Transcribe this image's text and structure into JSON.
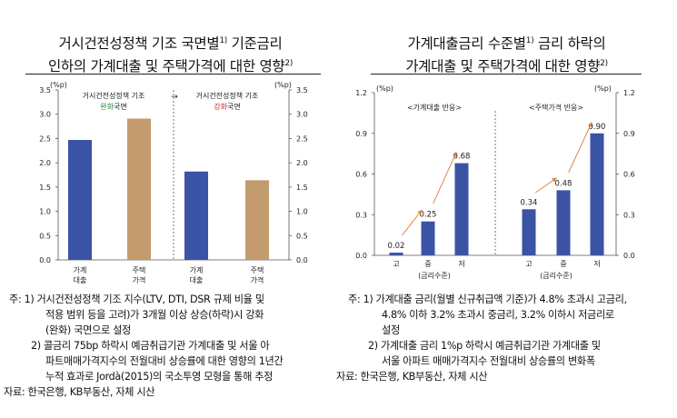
{
  "left": {
    "title_line1": "거시건전성정책 기조 국면별",
    "title_sup1": "1)",
    "title_line1b": " 기준금리",
    "title_line2": "인하의 가계대출 및 주택가격에 대한 영향",
    "title_sup2": "2)",
    "unit_left": "(%p)",
    "unit_right": "(%p)",
    "phase1_label": "거시건전성정책 기조",
    "phase1_sub_colored": "완화",
    "phase1_sub_rest": "국면",
    "phase2_label": "거시건전성정책 기조",
    "phase2_sub_colored": "강화",
    "phase2_sub_rest": "국면",
    "arrow": "→"
  },
  "right": {
    "title_line1": "가계대출금리 수준별",
    "title_sup1": "1)",
    "title_line1b": " 금리 하락의",
    "title_line2": "가계대출 및 주택가격에 대한 영향",
    "title_sup2": "2)",
    "unit_left": "(%p)",
    "unit_right": "(%p)",
    "group1_label": "<가계대출 반응>",
    "group2_label": "<주택가격 반응>",
    "xgroup_label": "(금리수준)"
  },
  "colors": {
    "blue": "#3A53A4",
    "tan": "#C39B6C",
    "orange": "#E0854B",
    "green": "#2E8B3A",
    "red": "#D42A2A"
  },
  "chart_data": [
    {
      "type": "bar",
      "categories": [
        "가계\n대출",
        "주택\n가격",
        "가계\n대출",
        "주택\n가격"
      ],
      "values": [
        2.47,
        2.91,
        1.82,
        1.64
      ],
      "bar_colors": [
        "#3A53A4",
        "#C39B6C",
        "#3A53A4",
        "#C39B6C"
      ],
      "ylim": [
        0,
        3.5
      ],
      "yticks": [
        "0.0",
        "0.5",
        "1.0",
        "1.5",
        "2.0",
        "2.5",
        "3.0",
        "3.5"
      ],
      "title": "거시건전성정책 기조 국면별 기준금리 인하의 가계대출 및 주택가격에 대한 영향"
    },
    {
      "type": "bar",
      "categories": [
        "고",
        "중",
        "저",
        "고",
        "중",
        "저"
      ],
      "values": [
        0.02,
        0.25,
        0.68,
        0.34,
        0.48,
        0.9
      ],
      "value_labels": [
        "0.02",
        "0.25",
        "0.68",
        "0.34",
        "0.48",
        "0.90"
      ],
      "ylim": [
        0,
        1.2
      ],
      "yticks": [
        "0.0",
        "0.3",
        "0.6",
        "0.9",
        "1.2"
      ],
      "title": "가계대출금리 수준별 금리 하락의 가계대출 및 주택가격에 대한 영향"
    }
  ],
  "notes_left": {
    "l1": "주: 1) 거시건전성정책 기조 지수(LTV, DTI, DSR 규제 비율 및",
    "l2": "적용 범위 등을 고려)가 3개월 이상 상승(하락)시 강화",
    "l3": "(완화) 국면으로 설정",
    "l4": "2) 콜금리 75bp 하락시 예금취급기관 가계대출 및 서울 아",
    "l5": "파트매매가격지수의 전월대비 상승률에 대한 영향의 1년간",
    "l6": "누적 효과로 Jordà(2015)의 국소투영 모형을 통해 추정",
    "l7": "자료: 한국은행, KB부동산, 자체 시산"
  },
  "notes_right": {
    "l1": "주: 1) 가계대출 금리(월별 신규취급액 기준)가 4.8% 초과시 고금리,",
    "l2": "4.8% 이하 3.2% 초과시 중금리, 3.2% 이하시 저금리로",
    "l3": "설정",
    "l4": "2) 가계대출 금리 1%p 하락시 예금취급기관 가계대출 및",
    "l5": "서울 아파트 매매가격지수 전월대비 상승률의 변화폭",
    "l6": "자료: 한국은행, KB부동산, 자체 시산"
  }
}
